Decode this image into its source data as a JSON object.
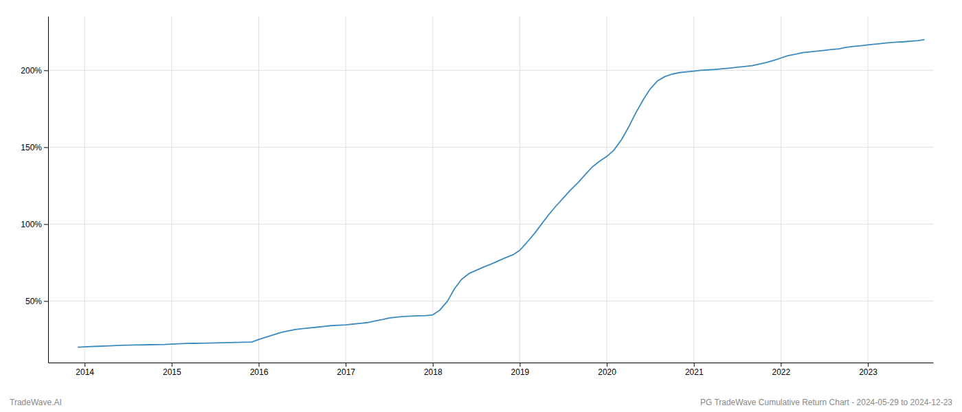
{
  "chart_data": {
    "type": "line",
    "title": "PG TradeWave Cumulative Return Chart - 2024-05-29 to 2024-12-23",
    "annotations": [
      "TradeWave.AI"
    ],
    "color": "#3a8abf",
    "grid": true,
    "xlim": [
      2013.58,
      2023.75
    ],
    "xticks": [
      2014,
      2015,
      2016,
      2017,
      2018,
      2019,
      2020,
      2021,
      2022,
      2023
    ],
    "ylim": [
      10,
      235
    ],
    "yticks": [
      {
        "value": 50,
        "label": "50%"
      },
      {
        "value": 100,
        "label": "100%"
      },
      {
        "value": 150,
        "label": "150%"
      },
      {
        "value": 200,
        "label": "200%"
      }
    ],
    "x": [
      2013.92,
      2014.0,
      2014.08,
      2014.17,
      2014.25,
      2014.33,
      2014.42,
      2014.5,
      2014.58,
      2014.67,
      2014.75,
      2014.83,
      2014.92,
      2015.0,
      2015.08,
      2015.17,
      2015.25,
      2015.33,
      2015.42,
      2015.5,
      2015.58,
      2015.67,
      2015.75,
      2015.83,
      2015.92,
      2016.0,
      2016.08,
      2016.17,
      2016.25,
      2016.33,
      2016.42,
      2016.5,
      2016.58,
      2016.67,
      2016.75,
      2016.83,
      2016.92,
      2017.0,
      2017.08,
      2017.17,
      2017.25,
      2017.33,
      2017.42,
      2017.5,
      2017.58,
      2017.67,
      2017.75,
      2017.83,
      2017.92,
      2018.0,
      2018.08,
      2018.17,
      2018.25,
      2018.33,
      2018.42,
      2018.5,
      2018.58,
      2018.67,
      2018.75,
      2018.83,
      2018.92,
      2019.0,
      2019.08,
      2019.17,
      2019.25,
      2019.33,
      2019.42,
      2019.5,
      2019.58,
      2019.67,
      2019.75,
      2019.83,
      2019.92,
      2020.0,
      2020.08,
      2020.17,
      2020.25,
      2020.33,
      2020.42,
      2020.5,
      2020.58,
      2020.67,
      2020.75,
      2020.83,
      2020.92,
      2021.0,
      2021.08,
      2021.17,
      2021.25,
      2021.33,
      2021.42,
      2021.5,
      2021.58,
      2021.67,
      2021.75,
      2021.83,
      2021.92,
      2022.0,
      2022.08,
      2022.17,
      2022.25,
      2022.33,
      2022.42,
      2022.5,
      2022.58,
      2022.67,
      2022.75,
      2022.83,
      2022.92,
      2023.0,
      2023.08,
      2023.17,
      2023.25,
      2023.33,
      2023.42,
      2023.5,
      2023.58,
      2023.65
    ],
    "values": [
      20.0,
      20.2,
      20.4,
      20.6,
      20.8,
      21.0,
      21.2,
      21.3,
      21.4,
      21.5,
      21.6,
      21.7,
      21.8,
      22.0,
      22.2,
      22.4,
      22.5,
      22.6,
      22.7,
      22.8,
      22.9,
      23.0,
      23.1,
      23.2,
      23.3,
      25.0,
      26.5,
      28.0,
      29.5,
      30.5,
      31.5,
      32.0,
      32.5,
      33.0,
      33.5,
      34.0,
      34.3,
      34.5,
      35.0,
      35.5,
      36.0,
      37.0,
      38.0,
      39.0,
      39.5,
      40.0,
      40.2,
      40.4,
      40.5,
      41.0,
      44.0,
      50.0,
      58.0,
      64.0,
      68.0,
      70.0,
      72.0,
      74.0,
      76.0,
      78.0,
      80.0,
      83.0,
      88.0,
      94.0,
      100.0,
      106.0,
      112.0,
      117.0,
      122.0,
      127.0,
      132.0,
      137.0,
      141.0,
      144.0,
      148.0,
      155.0,
      163.0,
      172.0,
      181.0,
      188.0,
      193.0,
      196.0,
      197.5,
      198.5,
      199.0,
      199.5,
      200.0,
      200.3,
      200.6,
      201.0,
      201.5,
      202.0,
      202.5,
      203.0,
      204.0,
      205.0,
      206.5,
      208.0,
      209.5,
      210.5,
      211.5,
      212.0,
      212.5,
      213.0,
      213.5,
      214.0,
      215.0,
      215.5,
      216.0,
      216.5,
      217.0,
      217.5,
      218.0,
      218.3,
      218.6,
      219.0,
      219.3,
      220.0
    ]
  }
}
